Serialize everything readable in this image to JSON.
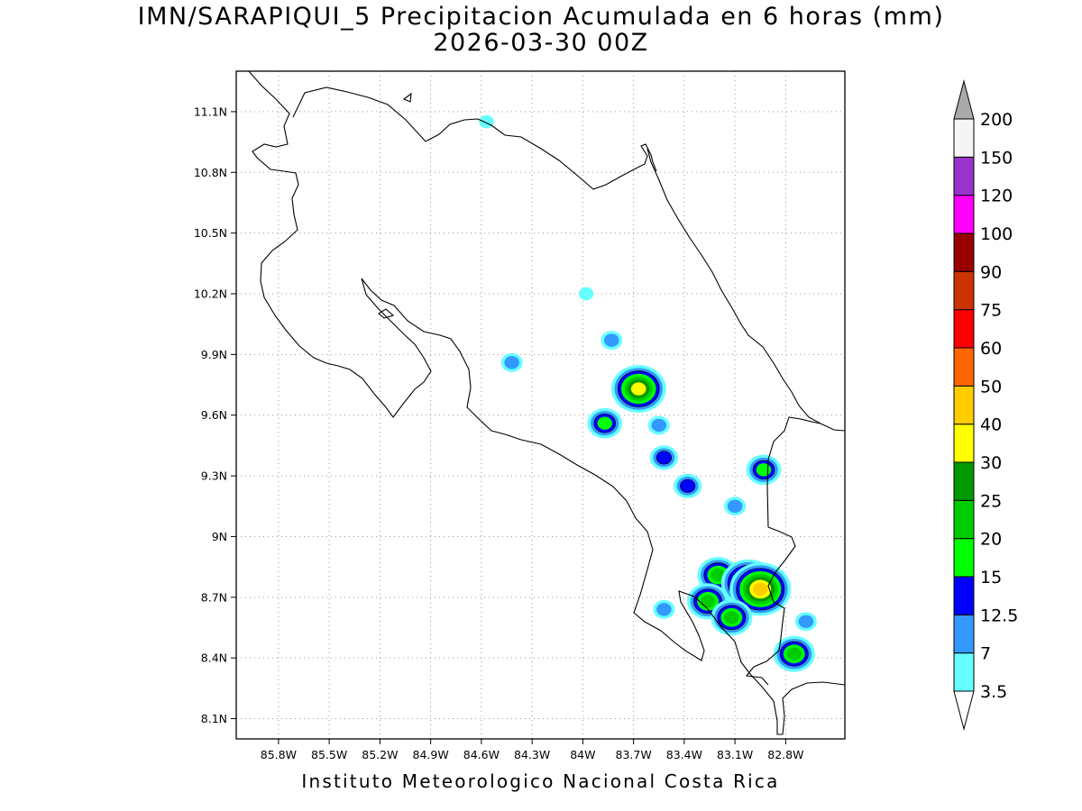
{
  "title": {
    "line1": "IMN/SARAPIQUI_5 Precipitacion Acumulada en 6 horas (mm)",
    "line2": "2026-03-30 00Z"
  },
  "footer": "Instituto Meteorologico Nacional Costa Rica",
  "map": {
    "lon_range": [
      -86.05,
      -82.45
    ],
    "lat_range": [
      8.0,
      11.3
    ],
    "x_ticks": [
      "85.8W",
      "85.5W",
      "85.2W",
      "84.9W",
      "84.6W",
      "84.3W",
      "84W",
      "83.7W",
      "83.4W",
      "83.1W",
      "82.8W"
    ],
    "x_tick_lons": [
      -85.8,
      -85.5,
      -85.2,
      -84.9,
      -84.6,
      -84.3,
      -84.0,
      -83.7,
      -83.4,
      -83.1,
      -82.8
    ],
    "y_ticks": [
      "11.1N",
      "10.8N",
      "10.5N",
      "10.2N",
      "9.9N",
      "9.6N",
      "9.3N",
      "9N",
      "8.7N",
      "8.4N",
      "8.1N"
    ],
    "y_tick_lats": [
      11.1,
      10.8,
      10.5,
      10.2,
      9.9,
      9.6,
      9.3,
      9.0,
      8.7,
      8.4,
      8.1
    ],
    "grid": "dotted"
  },
  "colorbar": {
    "labels": [
      "3.5",
      "7",
      "12.5",
      "15",
      "20",
      "25",
      "30",
      "40",
      "50",
      "60",
      "75",
      "90",
      "100",
      "120",
      "150",
      "200"
    ],
    "colors": [
      "#66ffff",
      "#3399ff",
      "#0000ff",
      "#00ff00",
      "#00cc00",
      "#009900",
      "#ffff00",
      "#ffcc00",
      "#ff6600",
      "#ff0000",
      "#cc3300",
      "#990000",
      "#ff00ff",
      "#9933cc",
      "#f5f5f5"
    ],
    "over_color": "#aaaaaa",
    "under_color": "#ffffff"
  },
  "precip_cells": [
    {
      "lon": -83.67,
      "lat": 9.73,
      "level": 7
    },
    {
      "lon": -83.87,
      "lat": 9.56,
      "level": 4
    },
    {
      "lon": -83.38,
      "lat": 9.25,
      "level": 3
    },
    {
      "lon": -83.52,
      "lat": 9.39,
      "level": 3
    },
    {
      "lon": -82.93,
      "lat": 9.33,
      "level": 4
    },
    {
      "lon": -83.2,
      "lat": 8.81,
      "level": 5
    },
    {
      "lon": -83.02,
      "lat": 8.77,
      "level": 7
    },
    {
      "lon": -82.95,
      "lat": 8.74,
      "level": 8
    },
    {
      "lon": -83.26,
      "lat": 8.68,
      "level": 5
    },
    {
      "lon": -83.12,
      "lat": 8.6,
      "level": 5
    },
    {
      "lon": -82.75,
      "lat": 8.42,
      "level": 5
    },
    {
      "lon": -83.83,
      "lat": 9.97,
      "level": 2
    },
    {
      "lon": -84.42,
      "lat": 9.86,
      "level": 2
    },
    {
      "lon": -83.55,
      "lat": 9.55,
      "level": 2
    },
    {
      "lon": -83.52,
      "lat": 8.64,
      "level": 2
    },
    {
      "lon": -84.57,
      "lat": 11.05,
      "level": 1
    },
    {
      "lon": -83.98,
      "lat": 10.2,
      "level": 1
    },
    {
      "lon": -82.68,
      "lat": 8.58,
      "level": 2
    },
    {
      "lon": -83.1,
      "lat": 9.15,
      "level": 2
    }
  ]
}
